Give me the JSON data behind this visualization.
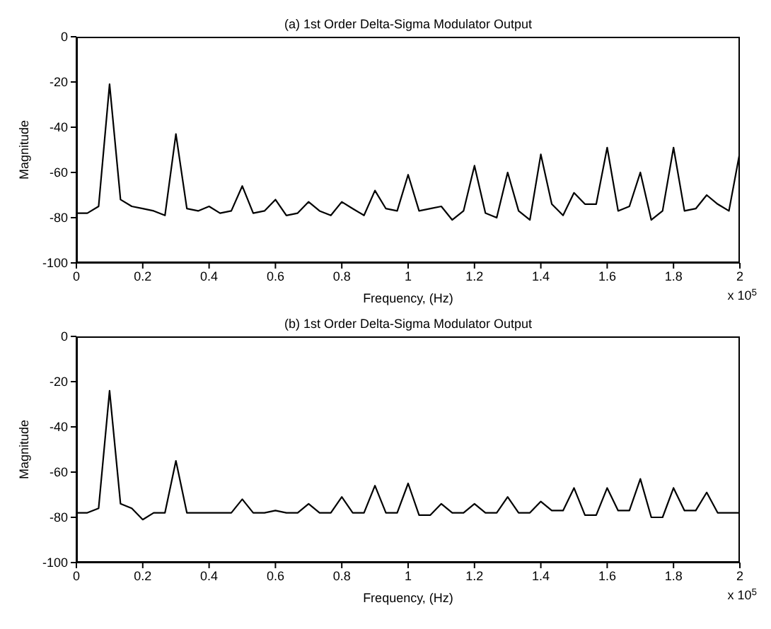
{
  "chart_data": [
    {
      "type": "line",
      "title": "(a) 1st Order Delta-Sigma Modulator Output",
      "xlabel": "Frequency, (Hz)",
      "ylabel": "Magnitude",
      "annotations": [
        "x 10$^{5}$"
      ],
      "marker": "none",
      "grid": false,
      "xlim": [
        0,
        2
      ],
      "xticks": [
        0,
        0.2,
        0.4,
        0.6,
        0.8,
        1,
        1.2,
        1.4,
        1.6,
        1.8,
        2
      ],
      "ylim": [
        -100,
        0
      ],
      "yticks": [
        -100,
        -80,
        -60,
        -40,
        -20,
        0
      ],
      "x": [
        0,
        0.033,
        0.067,
        0.1,
        0.133,
        0.167,
        0.2,
        0.233,
        0.267,
        0.3,
        0.333,
        0.367,
        0.4,
        0.433,
        0.467,
        0.5,
        0.533,
        0.567,
        0.6,
        0.633,
        0.667,
        0.7,
        0.733,
        0.767,
        0.8,
        0.833,
        0.867,
        0.9,
        0.933,
        0.967,
        1,
        1.033,
        1.067,
        1.1,
        1.133,
        1.167,
        1.2,
        1.233,
        1.267,
        1.3,
        1.333,
        1.367,
        1.4,
        1.433,
        1.467,
        1.5,
        1.533,
        1.567,
        1.6,
        1.633,
        1.667,
        1.7,
        1.733,
        1.767,
        1.8,
        1.833,
        1.867,
        1.9,
        1.933,
        1.967,
        2
      ],
      "series": [
        {
          "color": "#000000",
          "values": [
            -78,
            -78,
            -75,
            -21,
            -72,
            -75,
            -76,
            -77,
            -79,
            -43,
            -76,
            -77,
            -75,
            -78,
            -77,
            -66,
            -78,
            -77,
            -72,
            -79,
            -78,
            -73,
            -77,
            -79,
            -73,
            -76,
            -79,
            -68,
            -76,
            -77,
            -61,
            -77,
            -76,
            -75,
            -81,
            -77,
            -57,
            -78,
            -80,
            -60,
            -77,
            -81,
            -52,
            -74,
            -79,
            -69,
            -74,
            -74,
            -49,
            -77,
            -75,
            -60,
            -81,
            -77,
            -49,
            -77,
            -76,
            -70,
            -74,
            -77,
            -51
          ]
        }
      ]
    },
    {
      "type": "line",
      "title": "(b) 1st Order Delta-Sigma Modulator Output",
      "xlabel": "Frequency, (Hz)",
      "ylabel": "Magnitude",
      "annotations": [
        "x 10$^{5}$"
      ],
      "marker": "none",
      "grid": false,
      "xlim": [
        0,
        2
      ],
      "xticks": [
        0,
        0.2,
        0.4,
        0.6,
        0.8,
        1,
        1.2,
        1.4,
        1.6,
        1.8,
        2
      ],
      "ylim": [
        -100,
        0
      ],
      "yticks": [
        -100,
        -80,
        -60,
        -40,
        -20,
        0
      ],
      "x": [
        0,
        0.033,
        0.067,
        0.1,
        0.133,
        0.167,
        0.2,
        0.233,
        0.267,
        0.3,
        0.333,
        0.367,
        0.4,
        0.433,
        0.467,
        0.5,
        0.533,
        0.567,
        0.6,
        0.633,
        0.667,
        0.7,
        0.733,
        0.767,
        0.8,
        0.833,
        0.867,
        0.9,
        0.933,
        0.967,
        1,
        1.033,
        1.067,
        1.1,
        1.133,
        1.167,
        1.2,
        1.233,
        1.267,
        1.3,
        1.333,
        1.367,
        1.4,
        1.433,
        1.467,
        1.5,
        1.533,
        1.567,
        1.6,
        1.633,
        1.667,
        1.7,
        1.733,
        1.767,
        1.8,
        1.833,
        1.867,
        1.9,
        1.933,
        1.967,
        2
      ],
      "series": [
        {
          "color": "#000000",
          "values": [
            -78,
            -78,
            -76,
            -24,
            -74,
            -76,
            -81,
            -78,
            -78,
            -55,
            -78,
            -78,
            -78,
            -78,
            -78,
            -72,
            -78,
            -78,
            -77,
            -78,
            -78,
            -74,
            -78,
            -78,
            -71,
            -78,
            -78,
            -66,
            -78,
            -78,
            -65,
            -79,
            -79,
            -74,
            -78,
            -78,
            -74,
            -78,
            -78,
            -71,
            -78,
            -78,
            -73,
            -77,
            -77,
            -67,
            -79,
            -79,
            -67,
            -77,
            -77,
            -63,
            -80,
            -80,
            -67,
            -77,
            -77,
            -69,
            -78,
            -78,
            -78
          ]
        }
      ]
    }
  ]
}
